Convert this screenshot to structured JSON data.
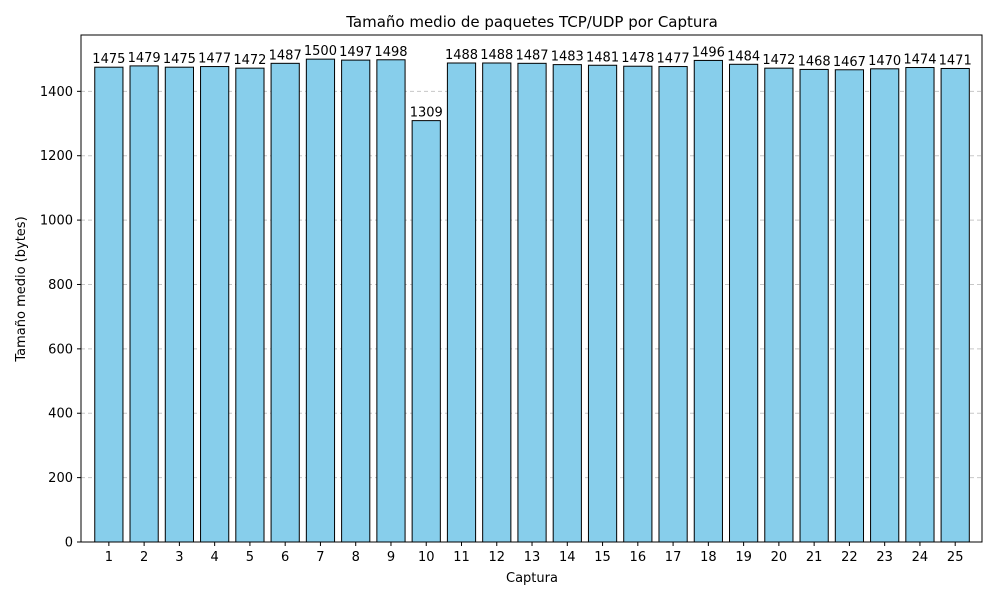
{
  "chart_data": {
    "type": "bar",
    "title": "Tamaño medio de paquetes TCP/UDP por Captura",
    "xlabel": "Captura",
    "ylabel": "Tamaño medio (bytes)",
    "categories": [
      "1",
      "2",
      "3",
      "4",
      "5",
      "6",
      "7",
      "8",
      "9",
      "10",
      "11",
      "12",
      "13",
      "14",
      "15",
      "16",
      "17",
      "18",
      "19",
      "20",
      "21",
      "22",
      "23",
      "24",
      "25"
    ],
    "values": [
      1475,
      1479,
      1475,
      1477,
      1472,
      1487,
      1500,
      1497,
      1498,
      1309,
      1488,
      1488,
      1487,
      1483,
      1481,
      1478,
      1477,
      1496,
      1484,
      1472,
      1468,
      1467,
      1470,
      1474,
      1471
    ],
    "ylim": [
      0,
      1575
    ],
    "yticks": [
      0,
      200,
      400,
      600,
      800,
      1000,
      1200,
      1400
    ],
    "grid": "y-dashed",
    "legend": "none",
    "colors": {
      "bar_fill": "#87ceeb",
      "bar_edge": "#000000",
      "grid": "#c8c8c8"
    }
  }
}
